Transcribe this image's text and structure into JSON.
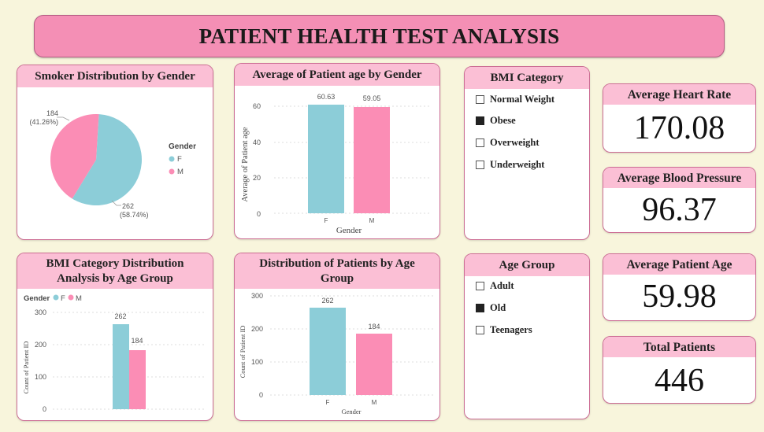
{
  "dashboard": {
    "title": "PATIENT HEALTH TEST ANALYSIS"
  },
  "colors": {
    "female": "#8ccdd8",
    "male": "#fb8db5",
    "header": "#fbbfd5",
    "title_bar": "#f48fb5",
    "background": "#f8f5dc"
  },
  "smoker_card": {
    "title": "Smoker Distribution by Gender",
    "legend_title": "Gender",
    "legend": [
      "F",
      "M"
    ],
    "labels": {
      "m_count": "184",
      "m_pct": "(41.26%)",
      "f_count": "262",
      "f_pct": "(58.74%)"
    }
  },
  "age_card": {
    "title": "Average of Patient age by Gender",
    "ylabel": "Average of Patient age",
    "xlabel": "Gender",
    "ticks": [
      "0",
      "20",
      "40",
      "60"
    ],
    "categories": [
      "F",
      "M"
    ],
    "data_labels": [
      "60.63",
      "59.05"
    ]
  },
  "bmi_slicer": {
    "title": "BMI Category",
    "items": [
      {
        "label": "Normal Weight",
        "checked": false
      },
      {
        "label": "Obese",
        "checked": true
      },
      {
        "label": "Overweight",
        "checked": false
      },
      {
        "label": "Underweight",
        "checked": false
      }
    ]
  },
  "age_group_slicer": {
    "title": "Age Group",
    "items": [
      {
        "label": "Adult",
        "checked": false
      },
      {
        "label": "Old",
        "checked": true
      },
      {
        "label": "Teenagers",
        "checked": false
      }
    ]
  },
  "bmi_age_card": {
    "title_line1": "BMI Category Distribution",
    "title_line2": "Analysis by Age Group",
    "legend_title": "Gender",
    "legend": [
      "F",
      "M"
    ],
    "ylabel": "Count of Patient ID",
    "ticks": [
      "0",
      "100",
      "200",
      "300"
    ],
    "data_labels": [
      "262",
      "184"
    ]
  },
  "dist_card": {
    "title_line1": "Distribution of Patients by Age",
    "title_line2": "Group",
    "ylabel": "Count of Patient ID",
    "xlabel": "Gender",
    "ticks": [
      "0",
      "100",
      "200",
      "300"
    ],
    "categories": [
      "F",
      "M"
    ],
    "data_labels": [
      "262",
      "184"
    ]
  },
  "kpis": {
    "heart_rate": {
      "label": "Average Heart Rate",
      "value": "170.08"
    },
    "blood_pressure": {
      "label": "Average Blood Pressure",
      "value": "96.37"
    },
    "patient_age": {
      "label": "Average Patient Age",
      "value": "59.98"
    },
    "total_patients": {
      "label": "Total Patients",
      "value": "446"
    }
  },
  "chart_data": [
    {
      "type": "pie",
      "title": "Smoker Distribution by Gender",
      "categories": [
        "F",
        "M"
      ],
      "values": [
        262,
        184
      ],
      "percentages": [
        58.74,
        41.26
      ],
      "legend_title": "Gender",
      "legend_position": "right"
    },
    {
      "type": "bar",
      "title": "Average of Patient age by Gender",
      "categories": [
        "F",
        "M"
      ],
      "values": [
        60.63,
        59.05
      ],
      "xlabel": "Gender",
      "ylabel": "Average of Patient age",
      "ylim": [
        0,
        70
      ],
      "grid": true
    },
    {
      "type": "bar",
      "title": "BMI Category Distribution Analysis by Age Group",
      "series": [
        {
          "name": "F",
          "values": [
            262
          ]
        },
        {
          "name": "M",
          "values": [
            184
          ]
        }
      ],
      "ylabel": "Count of Patient ID",
      "ylim": [
        0,
        300
      ],
      "legend_position": "top-left",
      "grid": true
    },
    {
      "type": "bar",
      "title": "Distribution of Patients by Age Group",
      "categories": [
        "F",
        "M"
      ],
      "values": [
        262,
        184
      ],
      "xlabel": "Gender",
      "ylabel": "Count of Patient ID",
      "ylim": [
        0,
        300
      ],
      "grid": true
    }
  ]
}
